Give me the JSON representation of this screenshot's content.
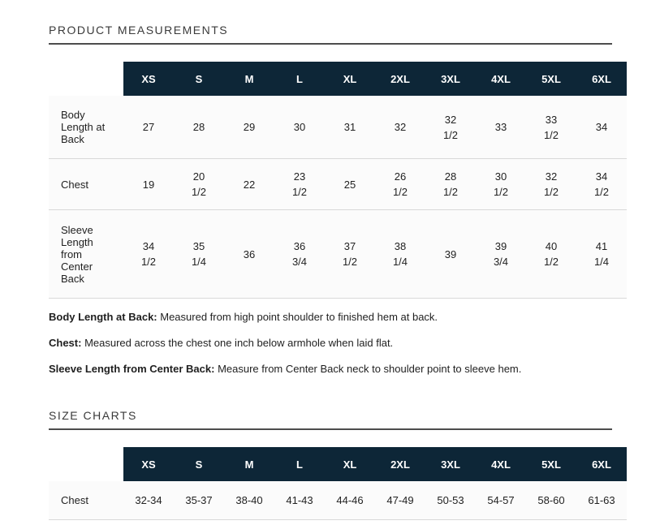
{
  "colors": {
    "header_bg": "#0d2637",
    "header_text": "#ffffff",
    "title_rule": "#4d4d4d",
    "row_divider": "#d9d9d9"
  },
  "product_measurements": {
    "title": "PRODUCT MEASUREMENTS",
    "sizes": [
      "XS",
      "S",
      "M",
      "L",
      "XL",
      "2XL",
      "3XL",
      "4XL",
      "5XL",
      "6XL"
    ],
    "rows": [
      {
        "label": "Body Length at Back",
        "values": [
          "27",
          "28",
          "29",
          "30",
          "31",
          "32",
          "32\n1/2",
          "33",
          "33\n1/2",
          "34"
        ]
      },
      {
        "label": "Chest",
        "values": [
          "19",
          "20\n1/2",
          "22",
          "23\n1/2",
          "25",
          "26\n1/2",
          "28\n1/2",
          "30\n1/2",
          "32\n1/2",
          "34\n1/2"
        ]
      },
      {
        "label": "Sleeve Length from Center Back",
        "values": [
          "34\n1/2",
          "35\n1/4",
          "36",
          "36\n3/4",
          "37\n1/2",
          "38\n1/4",
          "39",
          "39\n3/4",
          "40\n1/2",
          "41\n1/4"
        ]
      }
    ],
    "notes": [
      {
        "term": "Body Length at Back:",
        "definition": " Measured from high point shoulder to finished hem at back."
      },
      {
        "term": "Chest:",
        "definition": " Measured across the chest one inch below armhole when laid flat."
      },
      {
        "term": "Sleeve Length from Center Back:",
        "definition": " Measure from Center Back neck to shoulder point to sleeve hem."
      }
    ]
  },
  "size_charts": {
    "title": "SIZE CHARTS",
    "sizes": [
      "XS",
      "S",
      "M",
      "L",
      "XL",
      "2XL",
      "3XL",
      "4XL",
      "5XL",
      "6XL"
    ],
    "rows": [
      {
        "label": "Chest",
        "values": [
          "32-34",
          "35-37",
          "38-40",
          "41-43",
          "44-46",
          "47-49",
          "50-53",
          "54-57",
          "58-60",
          "61-63"
        ]
      }
    ]
  }
}
